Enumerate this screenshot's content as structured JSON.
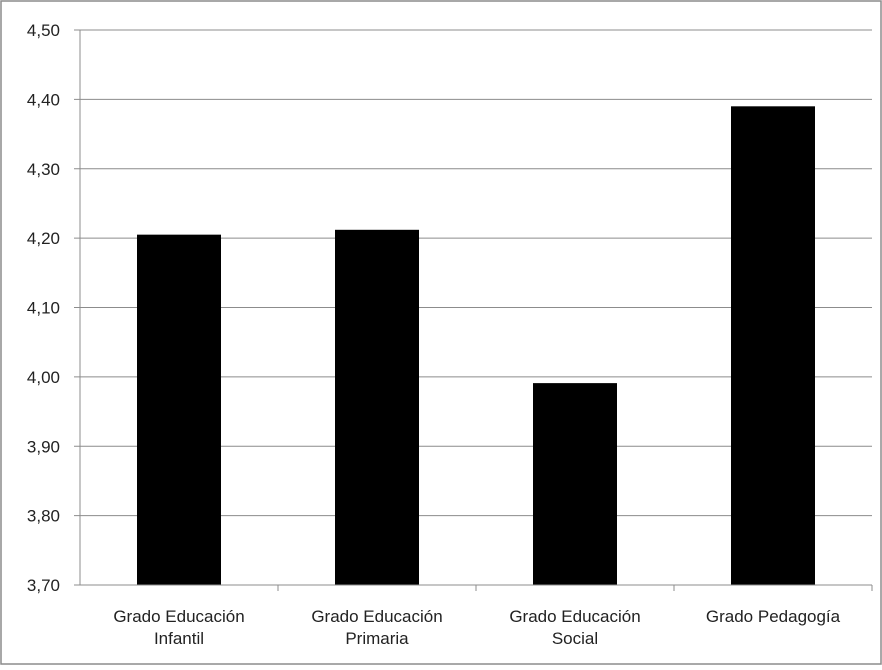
{
  "chart_data": {
    "type": "bar",
    "categories": [
      [
        "Grado Educación",
        "Infantil"
      ],
      [
        "Grado Educación",
        "Primaria"
      ],
      [
        "Grado Educación",
        "Social"
      ],
      [
        "Grado Pedagogía"
      ]
    ],
    "values": [
      4.205,
      4.212,
      3.991,
      4.39
    ],
    "ylim": [
      3.7,
      4.5
    ],
    "yticks": [
      "3,70",
      "3,80",
      "3,90",
      "4,00",
      "4,10",
      "4,20",
      "4,30",
      "4,40",
      "4,50"
    ],
    "title": "",
    "xlabel": "",
    "ylabel": "",
    "grid": true,
    "legend": "none",
    "bar_color": "#000000",
    "grid_color": "#8c8c8c"
  }
}
